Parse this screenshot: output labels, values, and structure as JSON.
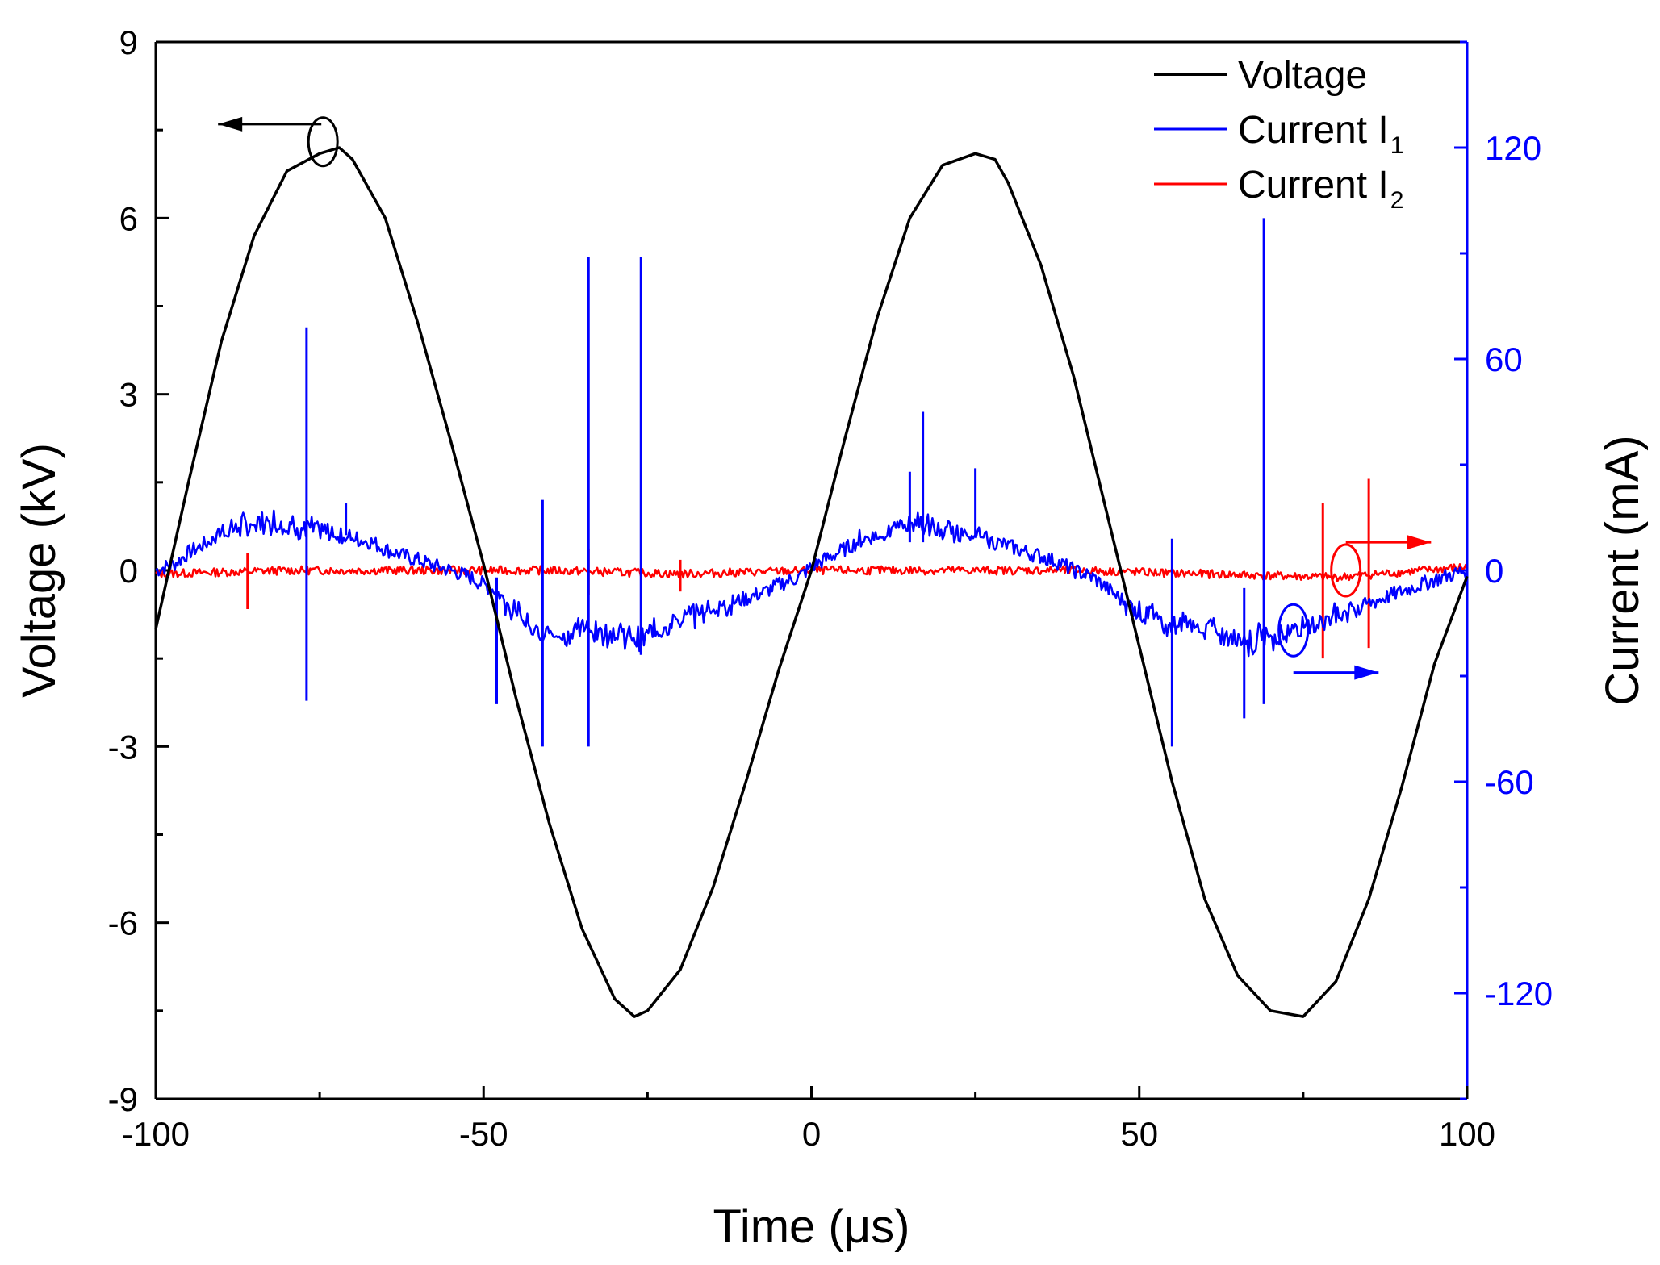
{
  "chart_data": {
    "type": "line",
    "title": "",
    "xlabel": "Time (μs)",
    "ylabel": "Voltage (kV)",
    "y2label": "Current (mA)",
    "xlim": [
      -100,
      100
    ],
    "ylim": [
      -9,
      9
    ],
    "y2lim": [
      -150,
      150
    ],
    "xticks": [
      -100,
      -50,
      0,
      50,
      100
    ],
    "xtick_labels": [
      "-100",
      "-50",
      "0",
      "50",
      "100"
    ],
    "yticks": [
      -9,
      -6,
      -3,
      0,
      3,
      6,
      9
    ],
    "ytick_labels": [
      "-9",
      "-6",
      "-3",
      "0",
      "3",
      "6",
      "9"
    ],
    "y2ticks": [
      -120,
      -60,
      0,
      60,
      120
    ],
    "y2tick_labels": [
      "-120",
      "-60",
      "0",
      "60",
      "120"
    ],
    "legend_position": "top-right",
    "colors": {
      "voltage": "#000000",
      "current1": "#0000ff",
      "current2": "#ff0000",
      "right_axis": "#0000ff"
    },
    "series": [
      {
        "name": "Voltage",
        "axis": "left",
        "unit": "kV",
        "x": [
          -100,
          -95,
          -90,
          -85,
          -80,
          -75,
          -72,
          -70,
          -65,
          -60,
          -55,
          -50,
          -45,
          -40,
          -35,
          -30,
          -27,
          -25,
          -20,
          -15,
          -10,
          -5,
          0,
          5,
          10,
          15,
          20,
          25,
          28,
          30,
          35,
          40,
          45,
          50,
          55,
          60,
          65,
          70,
          75,
          80,
          85,
          90,
          95,
          100
        ],
        "values": [
          -1.0,
          1.5,
          3.9,
          5.7,
          6.8,
          7.1,
          7.2,
          7.0,
          6.0,
          4.2,
          2.2,
          0.1,
          -2.2,
          -4.3,
          -6.1,
          -7.3,
          -7.6,
          -7.5,
          -6.8,
          -5.4,
          -3.6,
          -1.7,
          0.0,
          2.2,
          4.3,
          6.0,
          6.9,
          7.1,
          7.0,
          6.6,
          5.2,
          3.3,
          1.0,
          -1.3,
          -3.6,
          -5.6,
          -6.9,
          -7.5,
          -7.6,
          -7.0,
          -5.6,
          -3.7,
          -1.6,
          -0.1
        ]
      },
      {
        "name": "Current I1",
        "axis": "right",
        "unit": "mA",
        "x": [
          -100,
          -97,
          -95,
          -92,
          -90,
          -88,
          -85,
          -82,
          -80,
          -78,
          -75,
          -72,
          -70,
          -67,
          -65,
          -62,
          -60,
          -57,
          -55,
          -52,
          -50,
          -48,
          -46,
          -44,
          -42,
          -40,
          -38,
          -36,
          -34,
          -32,
          -30,
          -28,
          -26,
          -24,
          -22,
          -20,
          -17,
          -15,
          -12,
          -10,
          -7,
          -5,
          -2,
          0,
          2,
          4,
          6,
          8,
          10,
          12,
          14,
          16,
          18,
          20,
          22,
          24,
          26,
          28,
          30,
          33,
          35,
          38,
          40,
          43,
          45,
          47,
          49,
          51,
          53,
          55,
          57,
          59,
          61,
          63,
          65,
          67,
          69,
          71,
          73,
          75,
          78,
          81,
          84,
          87,
          90,
          93,
          96,
          98,
          100
        ],
        "values": [
          0,
          2,
          5,
          8,
          11,
          12,
          13,
          14,
          13,
          12,
          11,
          10,
          9,
          8,
          6,
          4,
          3,
          1,
          0,
          -2,
          -4,
          -6,
          -10,
          -14,
          -16,
          -18,
          -19,
          -17,
          -16,
          -18,
          -17,
          -19,
          -20,
          -17,
          -15,
          -14,
          -12,
          -11,
          -9,
          -8,
          -6,
          -4,
          -2,
          1,
          3,
          5,
          7,
          9,
          10,
          11,
          13,
          14,
          12,
          11,
          10,
          11,
          9,
          8,
          7,
          5,
          4,
          2,
          0,
          -2,
          -5,
          -8,
          -10,
          -12,
          -14,
          -16,
          -15,
          -17,
          -16,
          -19,
          -18,
          -21,
          -18,
          -19,
          -17,
          -16,
          -14,
          -12,
          -10,
          -8,
          -6,
          -4,
          -2,
          -1,
          0
        ],
        "spikes": [
          {
            "x": -77,
            "y": 69,
            "y_min": -37
          },
          {
            "x": -71,
            "y": 19,
            "y_min": 10
          },
          {
            "x": -48,
            "y": -2,
            "y_min": -38
          },
          {
            "x": -41,
            "y": 20,
            "y_min": -50
          },
          {
            "x": -34,
            "y": 89,
            "y_min": -50
          },
          {
            "x": -26,
            "y": 89,
            "y_min": -24
          },
          {
            "x": 15,
            "y": 28,
            "y_min": 8
          },
          {
            "x": 17,
            "y": 45,
            "y_min": 8
          },
          {
            "x": 25,
            "y": 29,
            "y_min": 10
          },
          {
            "x": 55,
            "y": 9,
            "y_min": -50
          },
          {
            "x": 66,
            "y": -5,
            "y_min": -42
          },
          {
            "x": 69,
            "y": 100,
            "y_min": -38
          }
        ]
      },
      {
        "name": "Current I2",
        "axis": "right",
        "unit": "mA",
        "x": [
          -100,
          -80,
          -60,
          -40,
          -20,
          0,
          20,
          40,
          60,
          80,
          100
        ],
        "values": [
          -1,
          0,
          0,
          0,
          -1,
          0,
          0,
          0,
          -1,
          -2,
          1
        ],
        "spikes": [
          {
            "x": -86,
            "y": 5,
            "y_min": -11
          },
          {
            "x": -34,
            "y": 6,
            "y_min": -7
          },
          {
            "x": -20,
            "y": 3,
            "y_min": -6
          },
          {
            "x": 78,
            "y": 19,
            "y_min": -25
          },
          {
            "x": 85,
            "y": 26,
            "y_min": -22
          }
        ]
      }
    ],
    "legend": [
      {
        "label": "Voltage",
        "sub": "",
        "color": "#000000"
      },
      {
        "label": "Current I",
        "sub": "1",
        "color": "#0000ff"
      },
      {
        "label": "Current I",
        "sub": "2",
        "color": "#ff0000"
      }
    ]
  }
}
